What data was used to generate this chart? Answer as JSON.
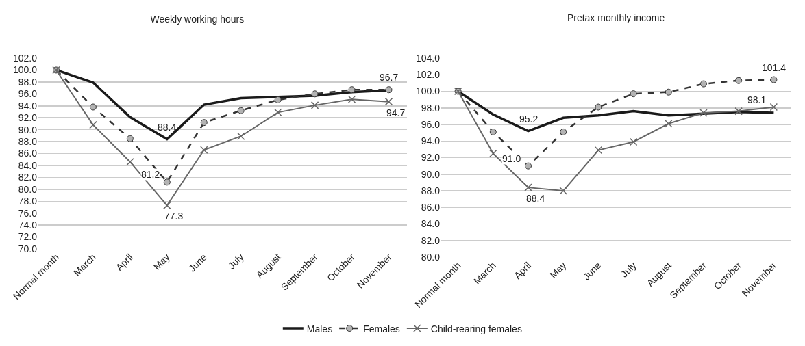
{
  "chart_data": [
    {
      "type": "line",
      "title": "Weekly working hours",
      "categories": [
        "Normal month",
        "March",
        "April",
        "May",
        "June",
        "July",
        "August",
        "September",
        "October",
        "November"
      ],
      "series": [
        {
          "name": "Males",
          "color": "#1a1a1a",
          "line_style": "solid",
          "marker": "none",
          "values": [
            100,
            97.9,
            92.1,
            88.4,
            94.2,
            95.3,
            95.5,
            95.7,
            96.3,
            96.6
          ],
          "value_labels": [
            null,
            null,
            null,
            "88.4",
            null,
            null,
            null,
            null,
            null,
            null
          ]
        },
        {
          "name": "Females",
          "color": "#333333",
          "line_style": "dashed",
          "marker": "circle",
          "values": [
            100,
            93.8,
            88.5,
            81.2,
            91.2,
            93.2,
            95.0,
            96.0,
            96.7,
            96.7
          ],
          "value_labels": [
            null,
            null,
            null,
            "81.2",
            null,
            null,
            null,
            null,
            null,
            "96.7"
          ]
        },
        {
          "name": "Child-rearing females",
          "color": "#666666",
          "line_style": "solid",
          "marker": "cross",
          "values": [
            100,
            90.8,
            84.6,
            77.3,
            86.6,
            88.9,
            92.9,
            94.1,
            95.1,
            94.7
          ],
          "value_labels": [
            null,
            null,
            null,
            "77.3",
            null,
            null,
            null,
            null,
            null,
            "94.7"
          ]
        }
      ],
      "ylim": [
        70,
        102
      ],
      "yticks": [
        {
          "value": 70,
          "label": "70.0"
        },
        {
          "value": 72,
          "label": "72.0"
        },
        {
          "value": 74,
          "label": "74.0"
        },
        {
          "value": 76,
          "label": "76.0"
        },
        {
          "value": 78,
          "label": "78.0"
        },
        {
          "value": 80,
          "label": "80.0"
        },
        {
          "value": 82,
          "label": "82.0"
        },
        {
          "value": 84,
          "label": "84.0"
        },
        {
          "value": 86,
          "label": "86.0"
        },
        {
          "value": 88,
          "label": "88.0"
        },
        {
          "value": 90,
          "label": "90.0"
        },
        {
          "value": 92,
          "label": "92.0"
        },
        {
          "value": 94,
          "label": "94.0"
        },
        {
          "value": 96,
          "label": "96.0"
        },
        {
          "value": 98,
          "label": "98.0"
        },
        {
          "value": 100,
          "label": "100.0"
        },
        {
          "value": 102,
          "label": "102.0"
        }
      ],
      "grid": "y",
      "legend": "bottom"
    },
    {
      "type": "line",
      "title": "Pretax monthly income",
      "categories": [
        "Normal month",
        "March",
        "April",
        "May",
        "June",
        "July",
        "August",
        "September",
        "October",
        "November"
      ],
      "series": [
        {
          "color": "#1a1a1a",
          "line_style": "solid",
          "marker": "none",
          "values": [
            100,
            97.2,
            95.2,
            96.8,
            97.1,
            97.6,
            97.1,
            97.3,
            97.5,
            97.4
          ],
          "value_labels": [
            null,
            null,
            "95.2",
            null,
            null,
            null,
            null,
            null,
            null,
            null
          ]
        },
        {
          "color": "#333333",
          "line_style": "dashed",
          "marker": "circle",
          "values": [
            100,
            95.1,
            91.0,
            95.1,
            98.1,
            99.7,
            99.9,
            100.9,
            101.3,
            101.4
          ],
          "value_labels": [
            null,
            null,
            "91.0",
            null,
            null,
            null,
            null,
            null,
            null,
            "101.4"
          ]
        },
        {
          "color": "#666666",
          "line_style": "solid",
          "marker": "cross",
          "values": [
            100,
            92.5,
            88.4,
            88.0,
            92.9,
            93.9,
            96.1,
            97.4,
            97.6,
            98.1
          ],
          "value_labels": [
            null,
            null,
            "88.4",
            null,
            null,
            null,
            null,
            null,
            null,
            "98.1"
          ]
        }
      ],
      "ylim": [
        80,
        104
      ],
      "yticks": [
        {
          "value": 80,
          "label": "80.0"
        },
        {
          "value": 82,
          "label": "82.0"
        },
        {
          "value": 84,
          "label": "84.0"
        },
        {
          "value": 86,
          "label": "86.0"
        },
        {
          "value": 88,
          "label": "88.0"
        },
        {
          "value": 90,
          "label": "90.0"
        },
        {
          "value": 92,
          "label": "92.0"
        },
        {
          "value": 94,
          "label": "94.0"
        },
        {
          "value": 96,
          "label": "96.0"
        },
        {
          "value": 98,
          "label": "98.0"
        },
        {
          "value": 100,
          "label": "100.0"
        },
        {
          "value": 102,
          "label": "102.0"
        },
        {
          "value": 104,
          "label": "104.0"
        }
      ],
      "grid": "y",
      "legend": false
    }
  ]
}
